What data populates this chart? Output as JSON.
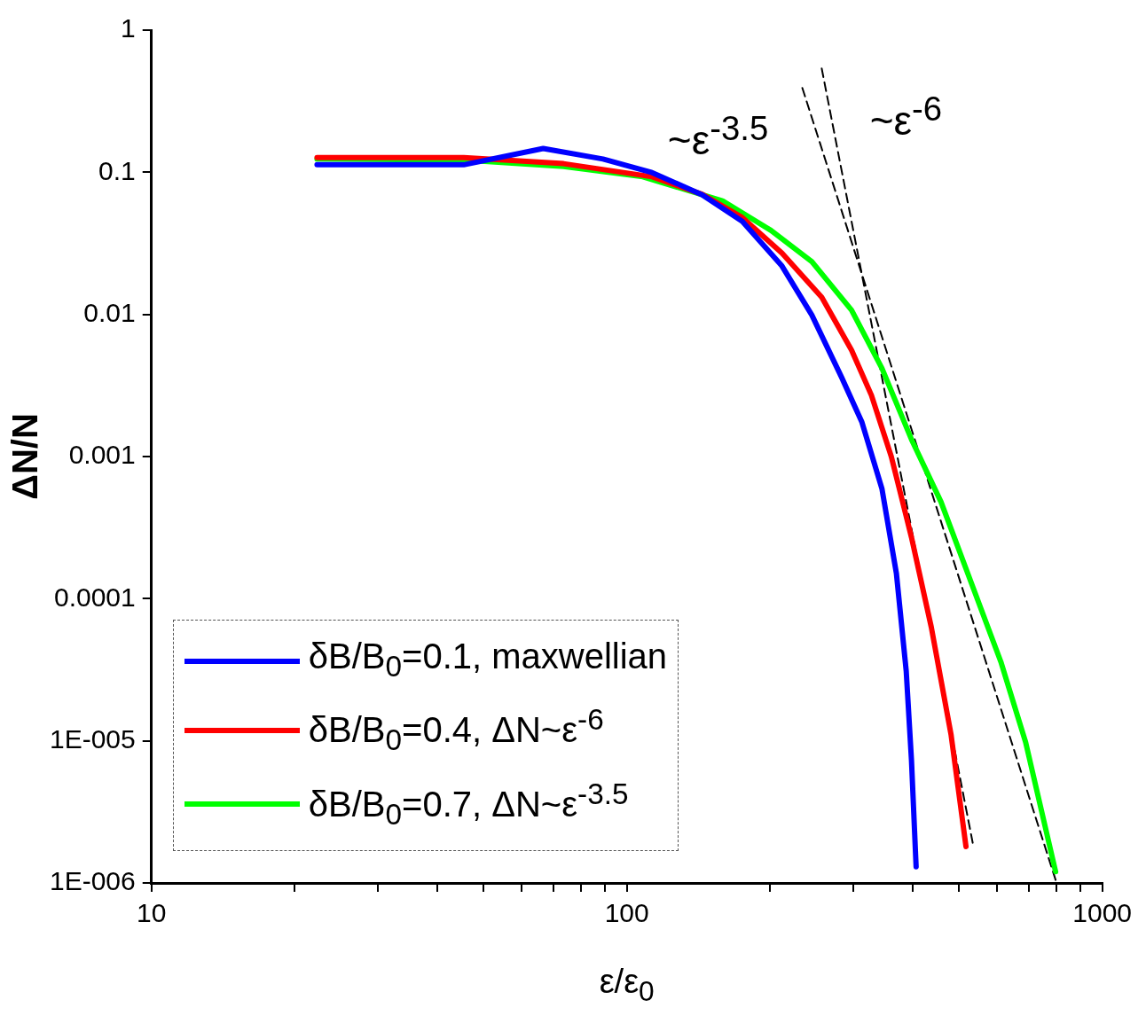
{
  "chart_data": {
    "type": "line",
    "xlabel": "ε/ε$_{0}$",
    "ylabel": "ΔN/N",
    "log": "xy",
    "xlim": [
      10,
      1000
    ],
    "ylim": [
      1e-06,
      1
    ],
    "xticks": [
      10,
      {
        "value": 20,
        "label": null
      },
      {
        "value": 30,
        "label": null
      },
      {
        "value": 40,
        "label": null
      },
      {
        "value": 50,
        "label": null
      },
      {
        "value": 60,
        "label": null
      },
      {
        "value": 70,
        "label": null
      },
      {
        "value": 80,
        "label": null
      },
      {
        "value": 90,
        "label": null
      },
      100,
      {
        "value": 200,
        "label": null
      },
      {
        "value": 300,
        "label": null
      },
      {
        "value": 400,
        "label": null
      },
      {
        "value": 500,
        "label": null
      },
      {
        "value": 600,
        "label": null
      },
      {
        "value": 700,
        "label": null
      },
      {
        "value": 800,
        "label": null
      },
      {
        "value": 900,
        "label": null
      },
      1000
    ],
    "yticks": [
      {
        "value": 1e-06,
        "label": "1E-006"
      },
      {
        "value": 1e-05,
        "label": "1E-005"
      },
      0.0001,
      0.001,
      0.01,
      0.1,
      1
    ],
    "grid": false,
    "legend": "bottom left",
    "line_style": "solid",
    "series": [
      {
        "name": "δB/B$_{0}$=0.1, maxwellian",
        "color": "#0000ff",
        "x": [
          22.3,
          45.4,
          66.7,
          89.1,
          113,
          144,
          175,
          212,
          245,
          283,
          312,
          344,
          369,
          387,
          397,
          406
        ],
        "values": [
          0.113,
          0.113,
          0.147,
          0.124,
          0.0995,
          0.0695,
          0.0451,
          0.0219,
          0.0099,
          0.00361,
          0.00176,
          0.000596,
          0.000151,
          3.1e-05,
          7.3e-06,
          1.3e-06
        ]
      },
      {
        "name": "δB/B$_{0}$=0.4, ΔN~ε$^{-6}$",
        "color": "#ff0000",
        "x": [
          22.3,
          45.4,
          73.6,
          113,
          144,
          175,
          212,
          257,
          297,
          327,
          360,
          397,
          437,
          481,
          517
        ],
        "values": [
          0.127,
          0.127,
          0.115,
          0.093,
          0.07,
          0.048,
          0.027,
          0.0132,
          0.0056,
          0.0027,
          0.001,
          0.00027,
          6.3e-05,
          1.1e-05,
          1.8e-06
        ]
      },
      {
        "name": "δB/B$_{0}$=0.7, ΔN~ε$^{-3.5}$",
        "color": "#00ff00",
        "x": [
          22.3,
          45.4,
          73.6,
          108,
          159,
          201,
          245,
          297,
          344,
          397,
          458,
          530,
          612,
          690,
          798
        ],
        "values": [
          0.124,
          0.122,
          0.11,
          0.093,
          0.063,
          0.039,
          0.0235,
          0.0107,
          0.00418,
          0.00132,
          0.00048,
          0.00013,
          3.6e-05,
          9.8e-06,
          1.2e-06
        ]
      },
      {
        "color": "#000000",
        "line_style": "dashed",
        "x": [
          234,
          798
        ],
        "values": [
          0.392,
          1.05e-06
        ]
      },
      {
        "color": "#000000",
        "line_style": "dashed",
        "x": [
          257,
          535
        ],
        "values": [
          0.538,
          1.86e-06
        ]
      }
    ],
    "annotations": [
      "~ε$^{-3.5}$",
      "~ε$^{-6}$"
    ]
  }
}
